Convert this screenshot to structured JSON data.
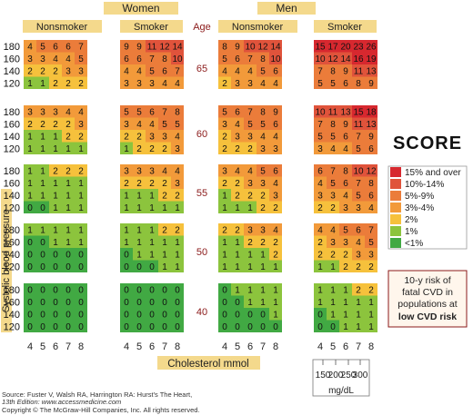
{
  "headers": {
    "women": "Women",
    "men": "Men",
    "age": "Age",
    "nonsmoker": "Nonsmoker",
    "smoker": "Smoker",
    "y_axis": "Systolic blood pressure",
    "x_axis": "Cholesterol mmol",
    "mgdl_unit": "mg/dL"
  },
  "logo": {
    "text": "SCORE"
  },
  "legend": {
    "items": [
      {
        "label": "15% and over",
        "color": "#d7282f"
      },
      {
        "label": "10%-14%",
        "color": "#e0533b"
      },
      {
        "label": "5%-9%",
        "color": "#eb7c3a"
      },
      {
        "label": "3%-4%",
        "color": "#f29a3a"
      },
      {
        "label": "2%",
        "color": "#f6c13c"
      },
      {
        "label": "1%",
        "color": "#8cc43d"
      },
      {
        "label": "<1%",
        "color": "#41a943"
      }
    ]
  },
  "risk_note": {
    "line1": "10-y risk of",
    "line2": "fatal CVD in",
    "line3": "populations at",
    "line4": "low CVD risk"
  },
  "source": {
    "line1": "Source: Fuster V, Walsh RA, Harrington RA: Hurst's The Heart,",
    "line2": "13th Edition: www.accessmedicine.com",
    "line3": "Copyright © The McGraw-Hill Companies, Inc. All rights reserved."
  },
  "chart_data": {
    "type": "heatmap",
    "x_axis_label": "Cholesterol mmol",
    "x_ticks": [
      "4",
      "5",
      "6",
      "7",
      "8"
    ],
    "mgdl_ticks": [
      "150",
      "200",
      "250",
      "300"
    ],
    "sbp_rows": [
      "180",
      "160",
      "140",
      "120"
    ],
    "ages": [
      "65",
      "60",
      "55",
      "50",
      "40"
    ],
    "colors": {
      "lt1": "#41a943",
      "1": "#8cc43d",
      "2": "#f6c13c",
      "3-4": "#f29a3a",
      "5-9": "#eb7c3a",
      "10-14": "#e0533b",
      "15+": "#d7282f"
    },
    "groups": [
      {
        "age": "65",
        "women_nonsmoker": [
          [
            4,
            5,
            6,
            6,
            7
          ],
          [
            3,
            3,
            4,
            4,
            5
          ],
          [
            2,
            2,
            2,
            3,
            3
          ],
          [
            1,
            1,
            2,
            2,
            2
          ]
        ],
        "women_smoker": [
          [
            9,
            9,
            11,
            12,
            14
          ],
          [
            6,
            6,
            7,
            8,
            10
          ],
          [
            4,
            4,
            5,
            6,
            7
          ],
          [
            3,
            3,
            3,
            4,
            4
          ]
        ],
        "men_nonsmoker": [
          [
            8,
            9,
            10,
            12,
            14
          ],
          [
            5,
            6,
            7,
            8,
            10
          ],
          [
            4,
            4,
            4,
            5,
            6
          ],
          [
            2,
            3,
            3,
            4,
            4
          ]
        ],
        "men_smoker": [
          [
            15,
            17,
            20,
            23,
            26
          ],
          [
            10,
            12,
            14,
            16,
            19
          ],
          [
            7,
            8,
            9,
            11,
            13
          ],
          [
            5,
            5,
            6,
            8,
            9
          ]
        ]
      },
      {
        "age": "60",
        "women_nonsmoker": [
          [
            3,
            3,
            3,
            4,
            4
          ],
          [
            2,
            2,
            2,
            2,
            3
          ],
          [
            1,
            1,
            1,
            2,
            2
          ],
          [
            1,
            1,
            1,
            1,
            1
          ]
        ],
        "women_smoker": [
          [
            5,
            5,
            6,
            7,
            8
          ],
          [
            3,
            4,
            4,
            5,
            5
          ],
          [
            2,
            2,
            3,
            3,
            4
          ],
          [
            1,
            2,
            2,
            2,
            3
          ]
        ],
        "men_nonsmoker": [
          [
            5,
            6,
            7,
            8,
            9
          ],
          [
            3,
            4,
            5,
            5,
            6
          ],
          [
            2,
            3,
            3,
            4,
            4
          ],
          [
            2,
            2,
            2,
            3,
            3
          ]
        ],
        "men_smoker": [
          [
            10,
            11,
            13,
            15,
            18
          ],
          [
            7,
            8,
            9,
            11,
            13
          ],
          [
            5,
            5,
            6,
            7,
            9
          ],
          [
            3,
            4,
            4,
            5,
            6
          ]
        ]
      },
      {
        "age": "55",
        "women_nonsmoker": [
          [
            1,
            1,
            2,
            2,
            2
          ],
          [
            1,
            1,
            1,
            1,
            1
          ],
          [
            1,
            1,
            1,
            1,
            1
          ],
          [
            0,
            0,
            1,
            1,
            1
          ]
        ],
        "women_smoker": [
          [
            3,
            3,
            3,
            4,
            4
          ],
          [
            2,
            2,
            2,
            2,
            3
          ],
          [
            1,
            1,
            1,
            2,
            2
          ],
          [
            1,
            1,
            1,
            1,
            1
          ]
        ],
        "men_nonsmoker": [
          [
            3,
            4,
            4,
            5,
            6
          ],
          [
            2,
            2,
            3,
            3,
            4
          ],
          [
            1,
            2,
            2,
            2,
            3
          ],
          [
            1,
            1,
            1,
            2,
            2
          ]
        ],
        "men_smoker": [
          [
            6,
            7,
            8,
            10,
            12
          ],
          [
            4,
            5,
            6,
            7,
            8
          ],
          [
            3,
            3,
            4,
            5,
            6
          ],
          [
            2,
            2,
            3,
            3,
            4
          ]
        ]
      },
      {
        "age": "50",
        "women_nonsmoker": [
          [
            1,
            1,
            1,
            1,
            1
          ],
          [
            0,
            0,
            1,
            1,
            1
          ],
          [
            0,
            0,
            0,
            0,
            0
          ],
          [
            0,
            0,
            0,
            0,
            0
          ]
        ],
        "women_smoker": [
          [
            1,
            1,
            1,
            2,
            2
          ],
          [
            1,
            1,
            1,
            1,
            1
          ],
          [
            0,
            1,
            1,
            1,
            1
          ],
          [
            0,
            0,
            0,
            1,
            1
          ]
        ],
        "men_nonsmoker": [
          [
            2,
            2,
            3,
            3,
            4
          ],
          [
            1,
            1,
            2,
            2,
            2
          ],
          [
            1,
            1,
            1,
            1,
            2
          ],
          [
            1,
            1,
            1,
            1,
            1
          ]
        ],
        "men_smoker": [
          [
            4,
            4,
            5,
            6,
            7
          ],
          [
            2,
            3,
            3,
            4,
            5
          ],
          [
            2,
            2,
            2,
            3,
            3
          ],
          [
            1,
            1,
            2,
            2,
            2
          ]
        ]
      },
      {
        "age": "40",
        "women_nonsmoker": [
          [
            0,
            0,
            0,
            0,
            0
          ],
          [
            0,
            0,
            0,
            0,
            0
          ],
          [
            0,
            0,
            0,
            0,
            0
          ],
          [
            0,
            0,
            0,
            0,
            0
          ]
        ],
        "women_smoker": [
          [
            0,
            0,
            0,
            0,
            0
          ],
          [
            0,
            0,
            0,
            0,
            0
          ],
          [
            0,
            0,
            0,
            0,
            0
          ],
          [
            0,
            0,
            0,
            0,
            0
          ]
        ],
        "men_nonsmoker": [
          [
            0,
            1,
            1,
            1,
            1
          ],
          [
            0,
            0,
            1,
            1,
            1
          ],
          [
            0,
            0,
            0,
            0,
            1
          ],
          [
            0,
            0,
            0,
            0,
            0
          ]
        ],
        "men_smoker": [
          [
            1,
            1,
            1,
            2,
            2
          ],
          [
            1,
            1,
            1,
            1,
            1
          ],
          [
            0,
            1,
            1,
            1,
            1
          ],
          [
            0,
            0,
            1,
            1,
            1
          ]
        ]
      }
    ]
  }
}
